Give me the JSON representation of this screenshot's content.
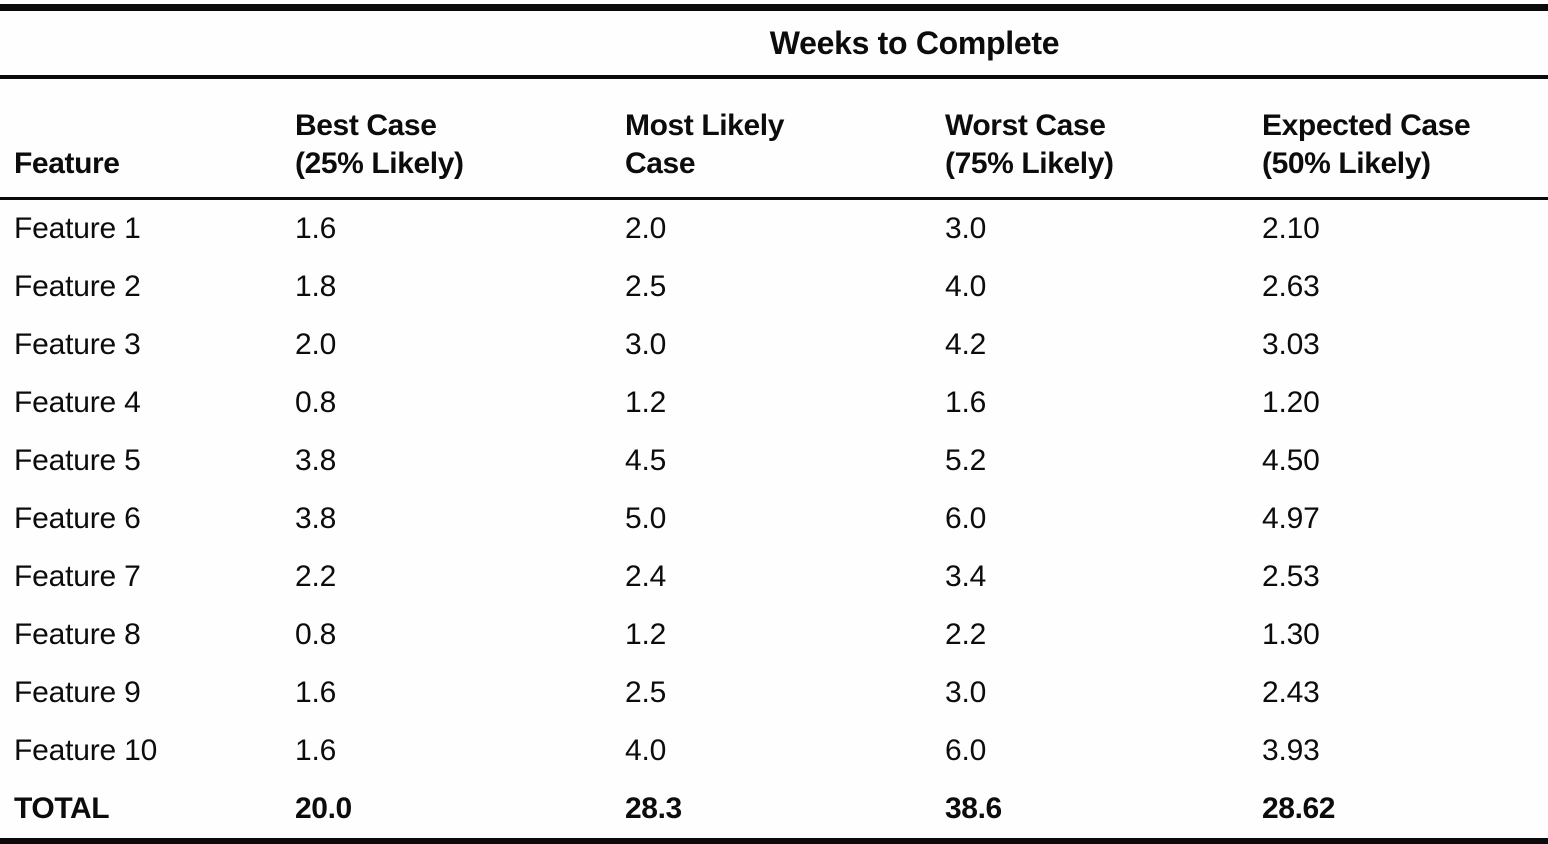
{
  "page": {
    "background": "#fefefe",
    "ink": "#0c0c0c"
  },
  "table": {
    "spanning_header": "Weeks to Complete",
    "columns": [
      {
        "key": "feature",
        "lines": [
          "Feature"
        ]
      },
      {
        "key": "best-case",
        "lines": [
          "Best Case",
          "(25% Likely)"
        ]
      },
      {
        "key": "most-likely-case",
        "lines": [
          "Most Likely",
          "Case"
        ]
      },
      {
        "key": "worst-case",
        "lines": [
          "Worst Case",
          "(75% Likely)"
        ]
      },
      {
        "key": "expected-case",
        "lines": [
          "Expected Case",
          "(50% Likely)"
        ]
      }
    ],
    "rows": [
      [
        "Feature 1",
        "1.6",
        "2.0",
        "3.0",
        "2.10"
      ],
      [
        "Feature 2",
        "1.8",
        "2.5",
        "4.0",
        "2.63"
      ],
      [
        "Feature 3",
        "2.0",
        "3.0",
        "4.2",
        "3.03"
      ],
      [
        "Feature 4",
        "0.8",
        "1.2",
        "1.6",
        "1.20"
      ],
      [
        "Feature 5",
        "3.8",
        "4.5",
        "5.2",
        "4.50"
      ],
      [
        "Feature 6",
        "3.8",
        "5.0",
        "6.0",
        "4.97"
      ],
      [
        "Feature 7",
        "2.2",
        "2.4",
        "3.4",
        "2.53"
      ],
      [
        "Feature 8",
        "0.8",
        "1.2",
        "2.2",
        "1.30"
      ],
      [
        "Feature 9",
        "1.6",
        "2.5",
        "3.0",
        "2.43"
      ],
      [
        "Feature 10",
        "1.6",
        "4.0",
        "6.0",
        "3.93"
      ]
    ],
    "total_row": [
      "TOTAL",
      "20.0",
      "28.3",
      "38.6",
      "28.62"
    ]
  }
}
